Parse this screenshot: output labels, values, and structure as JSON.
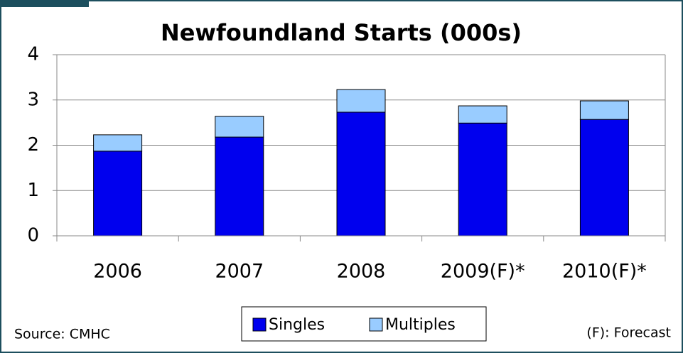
{
  "chart_data": {
    "type": "stacked_bar",
    "title": "Newfoundland Starts (000s)",
    "categories": [
      "2006",
      "2007",
      "2008",
      "2009(F)*",
      "2010(F)*"
    ],
    "series": [
      {
        "name": "Singles",
        "color": "#0000ee",
        "values": [
          1.87,
          2.18,
          2.73,
          2.49,
          2.57
        ]
      },
      {
        "name": "Multiples",
        "color": "#99ccff",
        "values": [
          0.36,
          0.46,
          0.5,
          0.38,
          0.41
        ]
      }
    ],
    "ylim": [
      0,
      4
    ],
    "yticks": [
      0,
      1,
      2,
      3,
      4
    ],
    "grid": true,
    "legend": "bottom",
    "source": "Source: CMHC",
    "note": "(F): Forecast"
  }
}
